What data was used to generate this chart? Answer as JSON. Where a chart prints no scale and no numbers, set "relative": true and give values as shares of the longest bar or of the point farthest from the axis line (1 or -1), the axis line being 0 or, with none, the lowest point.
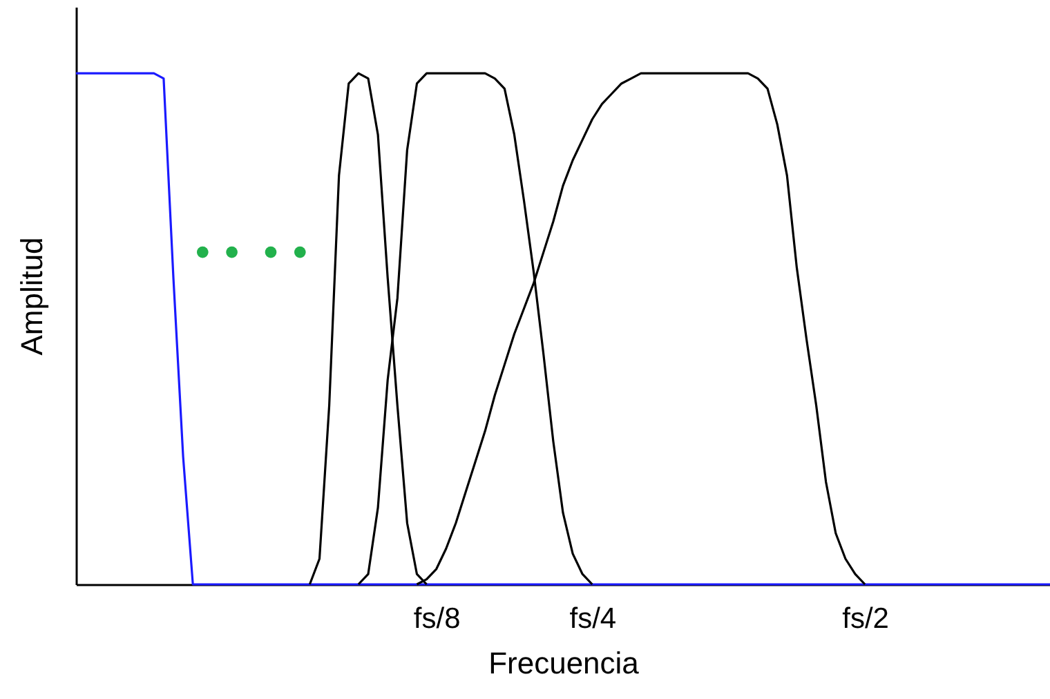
{
  "chart_data": {
    "type": "line",
    "relative": true,
    "xlabel": "Frecuencia",
    "ylabel": "Amplitud",
    "categories": [
      null,
      null,
      null,
      null,
      null,
      null,
      null,
      null,
      null,
      null,
      null,
      null,
      null,
      null,
      null,
      null,
      null,
      null,
      null,
      null,
      null,
      null,
      null,
      null,
      null,
      null,
      null,
      null,
      null,
      null,
      null,
      null,
      null,
      null,
      null,
      null,
      null,
      "fs/8",
      null,
      null,
      null,
      null,
      null,
      null,
      null,
      null,
      null,
      null,
      null,
      null,
      null,
      null,
      null,
      "fs/4",
      null,
      null,
      null,
      null,
      null,
      null,
      null,
      null,
      null,
      null,
      null,
      null,
      null,
      null,
      null,
      null,
      null,
      null,
      null,
      null,
      null,
      null,
      null,
      null,
      null,
      null,
      null,
      "fs/2",
      null,
      null,
      null,
      null,
      null,
      null,
      null,
      null,
      null,
      null,
      null,
      null,
      null,
      null,
      null,
      null,
      null,
      null,
      null
    ],
    "grid": false,
    "marker": "none",
    "line_style": "solid",
    "series": [
      {
        "type": "line",
        "color": "#1a1aff",
        "values": [
          1,
          1,
          1,
          1,
          1,
          1,
          1,
          1,
          1,
          0.99,
          0.6,
          0.25,
          0,
          0,
          0,
          0,
          0,
          0,
          0,
          0,
          0,
          0,
          0,
          0,
          0,
          0,
          0,
          0,
          0,
          0,
          0,
          0,
          0,
          0,
          0,
          0,
          0,
          0,
          0,
          0,
          0,
          0,
          0,
          0,
          0,
          0,
          0,
          0,
          0,
          0,
          0,
          0,
          0,
          0,
          0,
          0,
          0,
          0,
          0,
          0,
          0,
          0,
          0,
          0,
          0,
          0,
          0,
          0,
          0,
          0,
          0,
          0,
          0,
          0,
          0,
          0,
          0,
          0,
          0,
          0,
          0,
          0,
          0,
          0,
          0,
          0,
          0,
          0,
          0,
          0,
          0,
          0,
          0,
          0,
          0,
          0,
          0,
          0,
          0,
          0,
          0
        ]
      },
      {
        "type": "scatter",
        "marker": "circle",
        "color": "#22b14c",
        "values": [
          null,
          null,
          null,
          null,
          null,
          null,
          null,
          null,
          null,
          null,
          null,
          null,
          null,
          0.65,
          null,
          null,
          0.65,
          null,
          null,
          null,
          0.65,
          null,
          null,
          0.65,
          null,
          null,
          null,
          null,
          null,
          null,
          null,
          null,
          null,
          null,
          null,
          null,
          null,
          null,
          null,
          null,
          null,
          null,
          null,
          null,
          null,
          null,
          null,
          null,
          null,
          null,
          null,
          null,
          null,
          null,
          null,
          null,
          null,
          null,
          null,
          null,
          null,
          null,
          null,
          null,
          null,
          null,
          null,
          null,
          null,
          null,
          null,
          null,
          null,
          null,
          null,
          null,
          null,
          null,
          null,
          null,
          null,
          null,
          null,
          null,
          null,
          null,
          null,
          null,
          null,
          null,
          null,
          null,
          null,
          null,
          null,
          null,
          null,
          null,
          null,
          null,
          null
        ]
      },
      {
        "type": "line",
        "color": "#000000",
        "values": [
          null,
          null,
          null,
          null,
          null,
          null,
          null,
          null,
          null,
          null,
          null,
          null,
          null,
          null,
          null,
          null,
          null,
          null,
          null,
          null,
          null,
          null,
          null,
          null,
          0,
          0.05,
          0.35,
          0.8,
          0.98,
          1,
          0.99,
          0.88,
          0.6,
          0.35,
          0.12,
          0.02,
          0,
          null,
          null,
          null,
          null,
          null,
          null,
          null,
          null,
          null,
          null,
          null,
          null,
          null,
          null,
          null,
          null,
          null,
          null,
          null,
          null,
          null,
          null,
          null,
          null,
          null,
          null,
          null,
          null,
          null,
          null,
          null,
          null,
          null,
          null,
          null,
          null,
          null,
          null,
          null,
          null,
          null,
          null,
          null,
          null,
          null,
          null,
          null,
          null,
          null,
          null,
          null,
          null,
          null,
          null,
          null,
          null,
          null,
          null,
          null,
          null,
          null,
          null,
          null,
          null
        ]
      },
      {
        "type": "line",
        "color": "#000000",
        "values": [
          null,
          null,
          null,
          null,
          null,
          null,
          null,
          null,
          null,
          null,
          null,
          null,
          null,
          null,
          null,
          null,
          null,
          null,
          null,
          null,
          null,
          null,
          null,
          null,
          null,
          null,
          null,
          null,
          null,
          0,
          0.02,
          0.15,
          0.4,
          0.56,
          0.85,
          0.98,
          1,
          1,
          1,
          1,
          1,
          1,
          1,
          0.99,
          0.97,
          0.88,
          0.75,
          0.61,
          0.45,
          0.28,
          0.14,
          0.06,
          0.02,
          0,
          null,
          null,
          null,
          null,
          null,
          null,
          null,
          null,
          null,
          null,
          null,
          null,
          null,
          null,
          null,
          null,
          null,
          null,
          null,
          null,
          null,
          null,
          null,
          null,
          null,
          null,
          null,
          null,
          null,
          null,
          null,
          null,
          null,
          null,
          null,
          null,
          null,
          null,
          null,
          null,
          null,
          null,
          null,
          null,
          null,
          null,
          null
        ]
      },
      {
        "type": "line",
        "color": "#000000",
        "values": [
          null,
          null,
          null,
          null,
          null,
          null,
          null,
          null,
          null,
          null,
          null,
          null,
          null,
          null,
          null,
          null,
          null,
          null,
          null,
          null,
          null,
          null,
          null,
          null,
          null,
          null,
          null,
          null,
          null,
          null,
          null,
          null,
          null,
          null,
          null,
          0,
          0.01,
          0.03,
          0.07,
          0.12,
          0.18,
          0.24,
          0.3,
          0.37,
          0.43,
          0.49,
          0.54,
          0.59,
          0.65,
          0.71,
          0.78,
          0.83,
          0.87,
          0.91,
          0.94,
          0.96,
          0.98,
          0.99,
          1,
          1,
          1,
          1,
          1,
          1,
          1,
          1,
          1,
          1,
          1,
          1,
          0.99,
          0.97,
          0.9,
          0.8,
          0.62,
          0.48,
          0.35,
          0.2,
          0.1,
          0.05,
          0.02,
          0,
          null,
          null,
          null,
          null,
          null,
          null,
          null,
          null,
          null,
          null,
          null,
          null,
          null,
          null,
          null,
          null,
          null,
          null,
          null
        ]
      }
    ]
  }
}
